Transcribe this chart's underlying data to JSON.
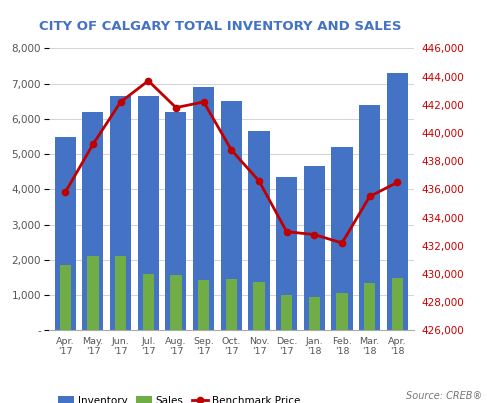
{
  "title": "CITY OF CALGARY TOTAL INVENTORY AND SALES",
  "categories": [
    "Apr.\n'17",
    "May.\n'17",
    "Jun.\n'17",
    "Jul.\n'17",
    "Aug.\n'17",
    "Sep.\n'17",
    "Oct.\n'17",
    "Nov.\n'17",
    "Dec.\n'17",
    "Jan.\n'18",
    "Feb.\n'18",
    "Mar.\n'18",
    "Apr.\n'18"
  ],
  "inventory": [
    5500,
    6200,
    6650,
    6650,
    6200,
    6900,
    6500,
    5650,
    4350,
    4650,
    5200,
    6400,
    7300
  ],
  "sales": [
    1850,
    2100,
    2100,
    1600,
    1575,
    1425,
    1450,
    1375,
    1000,
    950,
    1050,
    1350,
    1500
  ],
  "benchmark_price": [
    435800,
    439200,
    442200,
    443700,
    441800,
    442200,
    438800,
    436600,
    433000,
    432800,
    432200,
    435500,
    436500
  ],
  "bar_color_inventory": "#4472C4",
  "bar_color_sales": "#70AD47",
  "line_color": "#C00000",
  "title_color": "#4472C4",
  "left_ylim": [
    0,
    8000
  ],
  "left_yticks": [
    0,
    1000,
    2000,
    3000,
    4000,
    5000,
    6000,
    7000,
    8000
  ],
  "left_ytick_labels": [
    "-",
    "1,000",
    "2,000",
    "3,000",
    "4,000",
    "5,000",
    "6,000",
    "7,000",
    "8,000"
  ],
  "right_ylim": [
    426000,
    446000
  ],
  "right_yticks": [
    426000,
    428000,
    430000,
    432000,
    434000,
    436000,
    438000,
    440000,
    442000,
    444000,
    446000
  ],
  "right_ytick_labels": [
    "426,000",
    "428,000",
    "430,000",
    "432,000",
    "434,000",
    "436,000",
    "438,000",
    "440,000",
    "442,000",
    "444,000",
    "446,000"
  ],
  "source_text": "Source: CREB®",
  "legend_labels": [
    "Inventory",
    "Sales",
    "Benchmark Price"
  ],
  "background_color": "#FFFFFF"
}
